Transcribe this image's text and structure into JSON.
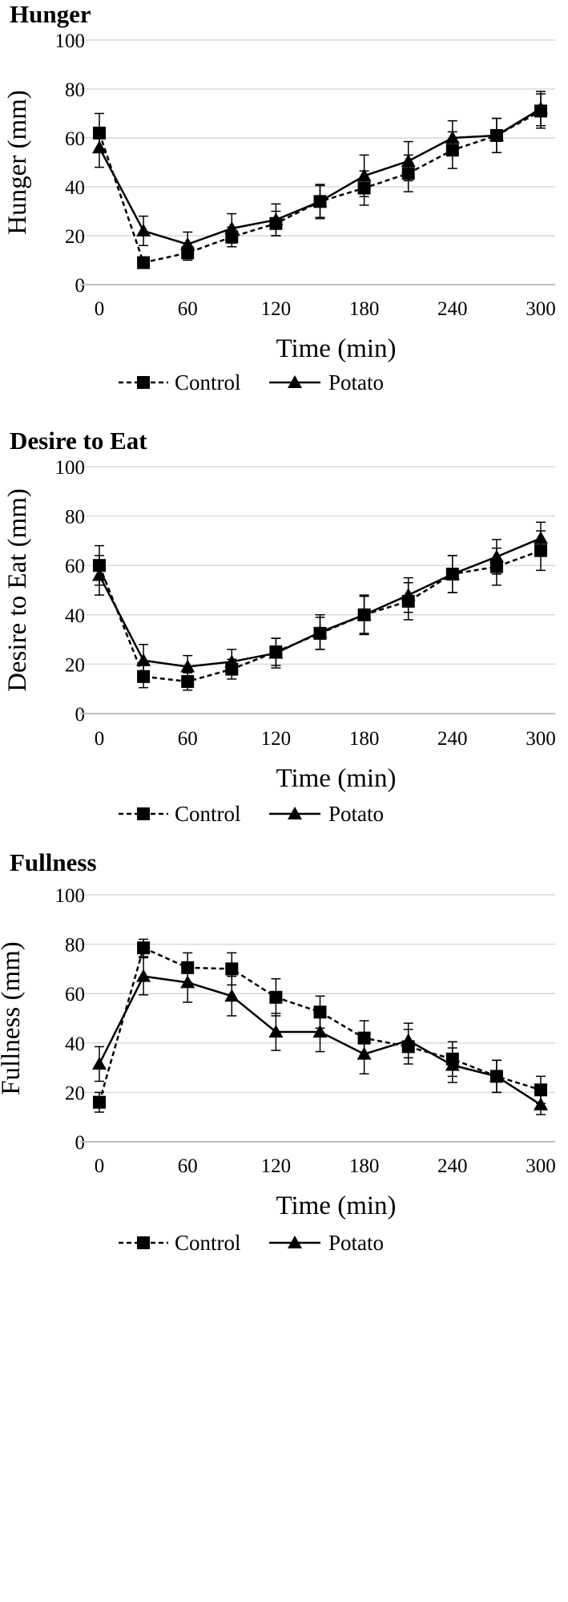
{
  "chart_data": [
    {
      "type": "line",
      "title": "Hunger",
      "xlabel": "Time (min)",
      "ylabel": "Hunger (mm)",
      "xlim": [
        0,
        300
      ],
      "ylim": [
        0,
        100
      ],
      "x_ticks": [
        0,
        60,
        120,
        180,
        240,
        300
      ],
      "y_ticks": [
        0,
        20,
        40,
        60,
        80,
        100
      ],
      "x_tick_labels": [
        "0",
        "60",
        "120",
        "180",
        "240",
        "300"
      ],
      "y_tick_labels": [
        "0",
        "20",
        "40",
        "60",
        "80",
        "100"
      ],
      "grid": "horizontal",
      "legend": "bottom",
      "series": [
        {
          "name": "Control",
          "line": "dashed",
          "marker": "square",
          "x": [
            0,
            30,
            60,
            90,
            120,
            150,
            180,
            210,
            240,
            270,
            300
          ],
          "y": [
            62,
            9,
            13,
            19.5,
            25,
            34,
            39.5,
            45.5,
            55,
            61,
            71
          ],
          "error": [
            8,
            2,
            3,
            4,
            5,
            6.5,
            7,
            7.5,
            7.5,
            7,
            7
          ]
        },
        {
          "name": "Potato",
          "line": "solid",
          "marker": "triangle",
          "x": [
            0,
            30,
            60,
            90,
            120,
            150,
            180,
            210,
            240,
            270,
            300
          ],
          "y": [
            56,
            22,
            16.5,
            23,
            26.5,
            34,
            44.5,
            50.5,
            60,
            61,
            72
          ],
          "error": [
            8,
            6,
            5,
            6,
            6.5,
            7,
            8.5,
            8,
            7,
            7,
            7
          ]
        }
      ]
    },
    {
      "type": "line",
      "title": "Desire to Eat",
      "xlabel": "Time (min)",
      "ylabel": "Desire to Eat (mm)",
      "xlim": [
        0,
        300
      ],
      "ylim": [
        0,
        100
      ],
      "x_ticks": [
        0,
        60,
        120,
        180,
        240,
        300
      ],
      "y_ticks": [
        0,
        20,
        40,
        60,
        80,
        100
      ],
      "x_tick_labels": [
        "0",
        "60",
        "120",
        "180",
        "240",
        "300"
      ],
      "y_tick_labels": [
        "0",
        "20",
        "40",
        "60",
        "80",
        "100"
      ],
      "grid": "horizontal",
      "legend": "bottom",
      "series": [
        {
          "name": "Control",
          "line": "dashed",
          "marker": "square",
          "x": [
            0,
            30,
            60,
            90,
            120,
            150,
            180,
            210,
            240,
            270,
            300
          ],
          "y": [
            60,
            15,
            13,
            18,
            25,
            32.5,
            40,
            45.5,
            56.5,
            59.5,
            66
          ],
          "error": [
            8,
            4.5,
            3.5,
            4,
            5.5,
            6.5,
            7.5,
            7.5,
            7.5,
            7.5,
            8
          ]
        },
        {
          "name": "Potato",
          "line": "solid",
          "marker": "triangle",
          "x": [
            0,
            30,
            60,
            90,
            120,
            150,
            180,
            210,
            240,
            270,
            300
          ],
          "y": [
            56,
            21.5,
            19,
            21,
            24.5,
            33,
            40,
            48,
            56.5,
            63.5,
            71
          ],
          "error": [
            8,
            6.5,
            4.5,
            5,
            6,
            7,
            8,
            7,
            7.5,
            7,
            6.5
          ]
        }
      ]
    },
    {
      "type": "line",
      "title": "Fullness",
      "xlabel": "Time (min)",
      "ylabel": "Fullness (mm)",
      "xlim": [
        0,
        300
      ],
      "ylim": [
        0,
        100
      ],
      "x_ticks": [
        0,
        60,
        120,
        180,
        240,
        300
      ],
      "y_ticks": [
        0,
        20,
        40,
        60,
        80,
        100
      ],
      "x_tick_labels": [
        "0",
        "60",
        "120",
        "180",
        "240",
        "300"
      ],
      "y_tick_labels": [
        "0",
        "20",
        "40",
        "60",
        "80",
        "100"
      ],
      "grid": "horizontal",
      "legend": "bottom",
      "series": [
        {
          "name": "Control",
          "line": "dashed",
          "marker": "square",
          "x": [
            0,
            30,
            60,
            90,
            120,
            150,
            180,
            210,
            240,
            270,
            300
          ],
          "y": [
            16,
            78.5,
            70.5,
            70,
            58.5,
            52.5,
            42,
            38.5,
            33.5,
            26.5,
            21
          ],
          "error": [
            4,
            3.5,
            6,
            6.5,
            7.5,
            6.5,
            7,
            7,
            7,
            6.5,
            5.5
          ]
        },
        {
          "name": "Potato",
          "line": "solid",
          "marker": "triangle",
          "x": [
            0,
            30,
            60,
            90,
            120,
            150,
            180,
            210,
            240,
            270,
            300
          ],
          "y": [
            31.5,
            67,
            64.5,
            59,
            44.5,
            44.5,
            35.5,
            41,
            31,
            26.5,
            15
          ],
          "error": [
            7,
            7.5,
            8,
            8,
            7.5,
            8,
            8,
            7,
            7,
            6.5,
            4
          ]
        }
      ]
    }
  ]
}
